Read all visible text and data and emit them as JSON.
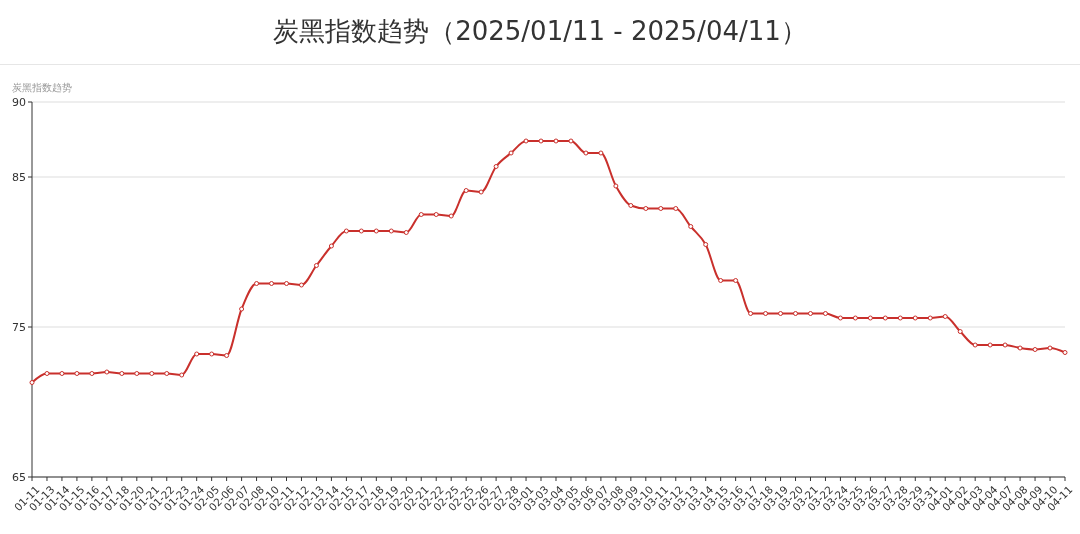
{
  "chart_data": {
    "type": "line",
    "title": "炭黑指数趋势（2025/01/11 - 2025/04/11）",
    "ylabel": "炭黑指数趋势",
    "categories": [
      "01-11",
      "01-13",
      "01-14",
      "01-15",
      "01-16",
      "01-17",
      "01-18",
      "01-20",
      "01-21",
      "01-22",
      "01-23",
      "01-24",
      "02-05",
      "02-06",
      "02-07",
      "02-08",
      "02-10",
      "02-11",
      "02-12",
      "02-13",
      "02-14",
      "02-15",
      "02-17",
      "02-18",
      "02-19",
      "02-20",
      "02-21",
      "02-22",
      "02-25",
      "02-25",
      "02-26",
      "02-27",
      "02-28",
      "03-01",
      "03-03",
      "03-04",
      "03-05",
      "03-06",
      "03-07",
      "03-08",
      "03-09",
      "03-10",
      "03-11",
      "03-12",
      "03-13",
      "03-14",
      "03-15",
      "03-16",
      "03-17",
      "03-18",
      "03-19",
      "03-20",
      "03-21",
      "03-22",
      "03-24",
      "03-25",
      "03-26",
      "03-27",
      "03-28",
      "03-29",
      "03-31",
      "04-01",
      "04-02",
      "04-03",
      "04-04",
      "04-07",
      "04-08",
      "04-09",
      "04-10",
      "04-11"
    ],
    "series": [
      {
        "color": "#c9302c",
        "values": [
          71.3,
          71.9,
          71.9,
          71.9,
          71.9,
          72.0,
          71.9,
          71.9,
          71.9,
          71.9,
          71.8,
          73.2,
          73.2,
          73.1,
          76.2,
          77.9,
          77.9,
          77.9,
          77.8,
          79.1,
          80.4,
          81.4,
          81.4,
          81.4,
          81.4,
          81.3,
          82.5,
          82.5,
          82.4,
          84.1,
          84.0,
          85.7,
          86.6,
          87.4,
          87.4,
          87.4,
          87.4,
          86.6,
          86.6,
          84.4,
          83.1,
          82.9,
          82.9,
          82.9,
          81.7,
          80.5,
          78.1,
          78.1,
          75.9,
          75.9,
          75.9,
          75.9,
          75.9,
          75.9,
          75.6,
          75.6,
          75.6,
          75.6,
          75.6,
          75.6,
          75.6,
          75.7,
          74.7,
          73.8,
          73.8,
          73.8,
          73.6,
          73.5,
          73.6,
          73.3
        ]
      }
    ],
    "ylim": [
      65,
      90
    ],
    "yticks": [
      65,
      75,
      85,
      90
    ],
    "grid": "y",
    "marker": "circle",
    "line_style": "solid"
  }
}
